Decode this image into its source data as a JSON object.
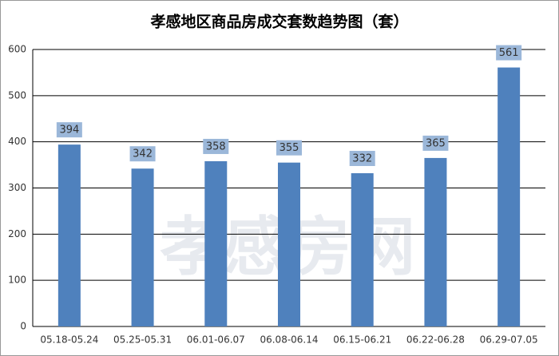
{
  "chart_data": {
    "type": "bar",
    "title": "孝感地区商品房成交套数趋势图（套）",
    "categories": [
      "05.18-05.24",
      "05.25-05.31",
      "06.01-06.07",
      "06.08-06.14",
      "06.15-06.21",
      "06.22-06.28",
      "06.29-07.05"
    ],
    "values": [
      394,
      342,
      358,
      355,
      332,
      365,
      561
    ],
    "color": "#4f81bd",
    "ylim": [
      0,
      600
    ],
    "yticks": [
      0,
      100,
      200,
      300,
      400,
      500,
      600
    ],
    "grid": true,
    "watermark": "孝感房网"
  }
}
